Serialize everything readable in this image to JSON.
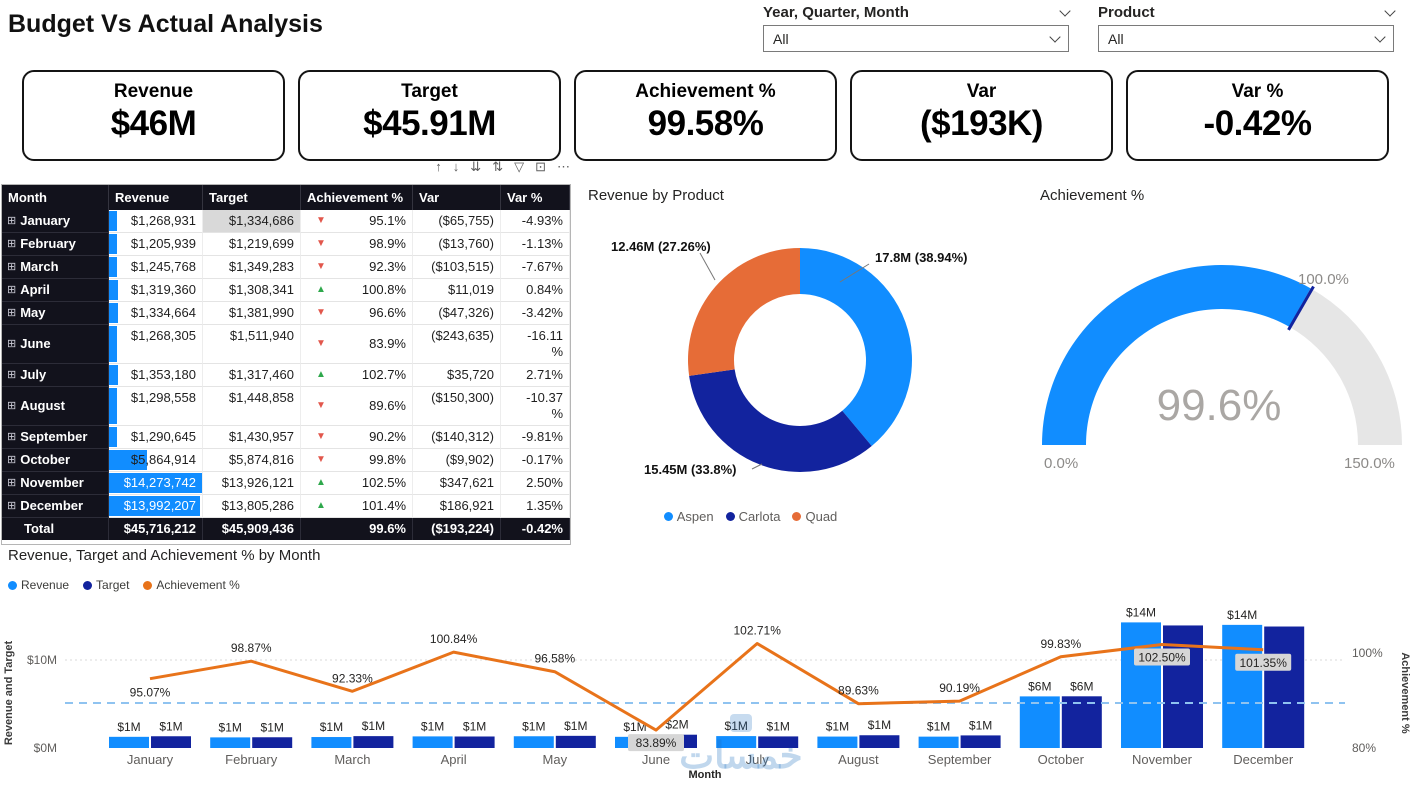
{
  "header": {
    "title": "Budget Vs Actual Analysis",
    "slicers": [
      {
        "label": "Year, Quarter, Month",
        "value": "All"
      },
      {
        "label": "Product",
        "value": "All"
      }
    ]
  },
  "kpi_cards": [
    {
      "title": "Revenue",
      "value": "$46M"
    },
    {
      "title": "Target",
      "value": "$45.91M"
    },
    {
      "title": "Achievement %",
      "value": "99.58%"
    },
    {
      "title": "Var",
      "value": "($193K)"
    },
    {
      "title": "Var %",
      "value": "-0.42%"
    }
  ],
  "visual_toolbar": {
    "icons": [
      {
        "name": "drill-up-icon",
        "glyph": "↑"
      },
      {
        "name": "drill-down-icon",
        "glyph": "↓"
      },
      {
        "name": "expand-all-icon",
        "glyph": "⇊"
      },
      {
        "name": "drill-mode-icon",
        "glyph": "⇅"
      },
      {
        "name": "filter-icon",
        "glyph": "▽"
      },
      {
        "name": "focus-mode-icon",
        "glyph": "⊡"
      },
      {
        "name": "more-options-icon",
        "glyph": "⋯"
      }
    ]
  },
  "table": {
    "columns": [
      "Month",
      "Revenue",
      "Target",
      "Achievement %",
      "Var",
      "Var %"
    ],
    "rows": [
      {
        "month": "January",
        "revenue": "$1,268,931",
        "target": "$1,334,686",
        "trend": "down",
        "achievement": "95.1%",
        "var": "($65,755)",
        "var_pct": "-4.93%",
        "target_highlight": true
      },
      {
        "month": "February",
        "revenue": "$1,205,939",
        "target": "$1,219,699",
        "trend": "down",
        "achievement": "98.9%",
        "var": "($13,760)",
        "var_pct": "-1.13%"
      },
      {
        "month": "March",
        "revenue": "$1,245,768",
        "target": "$1,349,283",
        "trend": "down",
        "achievement": "92.3%",
        "var": "($103,515)",
        "var_pct": "-7.67%"
      },
      {
        "month": "April",
        "revenue": "$1,319,360",
        "target": "$1,308,341",
        "trend": "up",
        "achievement": "100.8%",
        "var": "$11,019",
        "var_pct": "0.84%"
      },
      {
        "month": "May",
        "revenue": "$1,334,664",
        "target": "$1,381,990",
        "trend": "down",
        "achievement": "96.6%",
        "var": "($47,326)",
        "var_pct": "-3.42%"
      },
      {
        "month": "June",
        "revenue": "$1,268,305",
        "target": "$1,511,940",
        "trend": "down",
        "achievement": "83.9%",
        "var": "($243,635)",
        "var_pct": "-16.11\n%"
      },
      {
        "month": "July",
        "revenue": "$1,353,180",
        "target": "$1,317,460",
        "trend": "up",
        "achievement": "102.7%",
        "var": "$35,720",
        "var_pct": "2.71%"
      },
      {
        "month": "August",
        "revenue": "$1,298,558",
        "target": "$1,448,858",
        "trend": "down",
        "achievement": "89.6%",
        "var": "($150,300)",
        "var_pct": "-10.37\n%"
      },
      {
        "month": "September",
        "revenue": "$1,290,645",
        "target": "$1,430,957",
        "trend": "down",
        "achievement": "90.2%",
        "var": "($140,312)",
        "var_pct": "-9.81%"
      },
      {
        "month": "October",
        "revenue": "$5,864,914",
        "target": "$5,874,816",
        "trend": "down",
        "achievement": "99.8%",
        "var": "($9,902)",
        "var_pct": "-0.17%"
      },
      {
        "month": "November",
        "revenue": "$14,273,742",
        "target": "$13,926,121",
        "trend": "up",
        "achievement": "102.5%",
        "var": "$347,621",
        "var_pct": "2.50%",
        "bar_full": true
      },
      {
        "month": "December",
        "revenue": "$13,992,207",
        "target": "$13,805,286",
        "trend": "up",
        "achievement": "101.4%",
        "var": "$186,921",
        "var_pct": "1.35%",
        "bar_full": true
      }
    ],
    "total": {
      "month": "Total",
      "revenue": "$45,716,212",
      "target": "$45,909,436",
      "achievement": "99.6%",
      "var": "($193,224)",
      "var_pct": "-0.42%"
    }
  },
  "chart_data": [
    {
      "type": "pie",
      "subtype": "donut",
      "title": "Revenue by Product",
      "categories": [
        "Aspen",
        "Carlota",
        "Quad"
      ],
      "values_m": [
        17.8,
        15.45,
        12.46
      ],
      "percents": [
        38.94,
        33.8,
        27.26
      ],
      "labels": [
        "17.8M (38.94%)",
        "15.45M (33.8%)",
        "12.46M (27.26%)"
      ],
      "colors": [
        "#118DFF",
        "#12239E",
        "#E66C37"
      ],
      "legend_position": "bottom"
    },
    {
      "type": "gauge",
      "title": "Achievement %",
      "value": 99.58,
      "value_label": "99.6%",
      "min": 0,
      "max": 150,
      "target": 100,
      "min_label": "0.0%",
      "max_label": "150.0%",
      "target_label": "100.0%",
      "fill_color": "#118DFF",
      "track_color": "#E6E6E6",
      "target_color": "#12239E"
    },
    {
      "type": "bar",
      "subtype": "combo-column-line",
      "title": "Revenue, Target and Achievement % by Month",
      "categories": [
        "January",
        "February",
        "March",
        "April",
        "May",
        "June",
        "July",
        "August",
        "September",
        "October",
        "November",
        "December"
      ],
      "series": [
        {
          "name": "Revenue",
          "kind": "column",
          "color": "#118DFF",
          "values_m": [
            1.269,
            1.206,
            1.246,
            1.319,
            1.335,
            1.268,
            1.353,
            1.299,
            1.291,
            5.865,
            14.274,
            13.992
          ],
          "labels": [
            "$1M",
            "$1M",
            "$1M",
            "$1M",
            "$1M",
            "$1M",
            "$1M",
            "$1M",
            "$1M",
            "$6M",
            "$14M",
            "$14M"
          ]
        },
        {
          "name": "Target",
          "kind": "column",
          "color": "#12239E",
          "values_m": [
            1.335,
            1.22,
            1.349,
            1.308,
            1.382,
            1.512,
            1.317,
            1.449,
            1.431,
            5.875,
            13.926,
            13.805
          ],
          "labels": [
            "$1M",
            "$1M",
            "$1M",
            "$1M",
            "$1M",
            "$2M",
            "$1M",
            "$1M",
            "$1M",
            "$6M",
            "",
            ""
          ]
        },
        {
          "name": "Achievement %",
          "kind": "line",
          "color": "#E8731A",
          "values_pct": [
            95.07,
            98.87,
            92.33,
            100.84,
            96.58,
            83.89,
            102.71,
            89.63,
            90.19,
            99.83,
            102.5,
            101.35
          ],
          "labels": [
            "95.07%",
            "98.87%",
            "92.33%",
            "100.84%",
            "96.58%",
            "83.89%",
            "102.71%",
            "89.63%",
            "90.19%",
            "99.83%",
            "102.50%",
            "101.35%"
          ],
          "label_pos": [
            "below",
            "above",
            "above",
            "above",
            "above",
            "boxed-below",
            "above",
            "above",
            "above",
            "above",
            "boxed-below",
            "boxed-below"
          ]
        }
      ],
      "left_axis": {
        "title": "Revenue and Target",
        "ticks": [
          "$0M",
          "$10M"
        ],
        "range_m": [
          0,
          10
        ]
      },
      "right_axis": {
        "title": "Achievement %",
        "ticks": [
          "80%",
          "100%"
        ],
        "range_pct": [
          80,
          100
        ]
      },
      "x_axis": {
        "title": "Month"
      },
      "reference_line": {
        "color": "#8FC3F0",
        "style": "dashed",
        "value_m": 4.9
      },
      "grid": true,
      "legend_position": "top-left"
    }
  ],
  "watermark": {
    "text": "خمسات"
  }
}
